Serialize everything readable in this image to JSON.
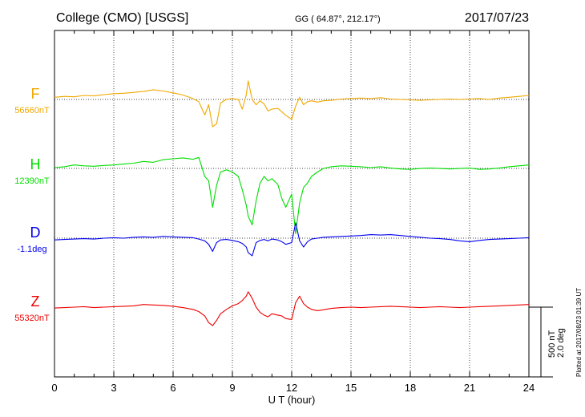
{
  "header": {
    "station": "College (CMO)  [USGS]",
    "coords": "GG ( 64.87°, 212.17°)",
    "date": "2017/07/23"
  },
  "plotted_note": "Plotted at 2017/08/23 01:39 UT",
  "scale_bar": {
    "label1": "500 nT",
    "label2": "2.0 deg"
  },
  "chart_data": {
    "type": "line",
    "title": "College (CMO)  [USGS]",
    "xlabel": "U T (hour)",
    "ylabel": "",
    "xlim": [
      0,
      24
    ],
    "x_ticks": [
      "0",
      "3",
      "6",
      "9",
      "12",
      "15",
      "18",
      "21",
      "24"
    ],
    "grid": true,
    "series": [
      {
        "name": "F",
        "baseline_label": "56660nT",
        "color": "#f0a800",
        "offset": 0,
        "points": [
          [
            0,
            5
          ],
          [
            0.5,
            7
          ],
          [
            1,
            6
          ],
          [
            1.5,
            9
          ],
          [
            2,
            8
          ],
          [
            2.5,
            11
          ],
          [
            3,
            13
          ],
          [
            3.5,
            14
          ],
          [
            4,
            16
          ],
          [
            4.5,
            18
          ],
          [
            5,
            22
          ],
          [
            5.5,
            19
          ],
          [
            6,
            15
          ],
          [
            6.5,
            10
          ],
          [
            7,
            2
          ],
          [
            7.3,
            -5
          ],
          [
            7.6,
            -35
          ],
          [
            7.8,
            -12
          ],
          [
            8,
            -62
          ],
          [
            8.2,
            -55
          ],
          [
            8.4,
            -8
          ],
          [
            8.7,
            0
          ],
          [
            9,
            2
          ],
          [
            9.3,
            0
          ],
          [
            9.5,
            -22
          ],
          [
            9.7,
            10
          ],
          [
            9.8,
            42
          ],
          [
            10,
            0
          ],
          [
            10.2,
            -12
          ],
          [
            10.4,
            -3
          ],
          [
            10.6,
            -10
          ],
          [
            10.8,
            -26
          ],
          [
            11,
            -22
          ],
          [
            11.3,
            -20
          ],
          [
            11.5,
            -28
          ],
          [
            11.7,
            -36
          ],
          [
            12,
            -45
          ],
          [
            12.2,
            -15
          ],
          [
            12.4,
            5
          ],
          [
            12.6,
            -12
          ],
          [
            12.8,
            -5
          ],
          [
            13,
            -3
          ],
          [
            13.3,
            -6
          ],
          [
            13.6,
            -3
          ],
          [
            14,
            -2
          ],
          [
            14.5,
            1
          ],
          [
            15,
            2
          ],
          [
            15.5,
            3
          ],
          [
            16,
            2
          ],
          [
            16.5,
            4
          ],
          [
            17,
            1
          ],
          [
            17.5,
            0
          ],
          [
            18,
            -1
          ],
          [
            18.5,
            -2
          ],
          [
            19,
            -1
          ],
          [
            19.5,
            0
          ],
          [
            20,
            1
          ],
          [
            20.5,
            0
          ],
          [
            21,
            1
          ],
          [
            21.5,
            2
          ],
          [
            22,
            0
          ],
          [
            22.5,
            3
          ],
          [
            23,
            5
          ],
          [
            23.5,
            7
          ],
          [
            24,
            9
          ]
        ]
      },
      {
        "name": "H",
        "baseline_label": "12390nT",
        "color": "#00dd00",
        "offset": 0,
        "points": [
          [
            0,
            0
          ],
          [
            0.5,
            2
          ],
          [
            1,
            6
          ],
          [
            1.5,
            4
          ],
          [
            2,
            3
          ],
          [
            2.5,
            5
          ],
          [
            3,
            6
          ],
          [
            3.5,
            8
          ],
          [
            4,
            10
          ],
          [
            4.5,
            14
          ],
          [
            5,
            12
          ],
          [
            5.5,
            18
          ],
          [
            6,
            20
          ],
          [
            6.5,
            22
          ],
          [
            7,
            19
          ],
          [
            7.3,
            23
          ],
          [
            7.6,
            -20
          ],
          [
            7.8,
            -30
          ],
          [
            8,
            -90
          ],
          [
            8.2,
            -40
          ],
          [
            8.4,
            -10
          ],
          [
            8.7,
            -5
          ],
          [
            9,
            -10
          ],
          [
            9.3,
            -20
          ],
          [
            9.5,
            -50
          ],
          [
            9.7,
            -85
          ],
          [
            9.8,
            -110
          ],
          [
            10,
            -130
          ],
          [
            10.2,
            -75
          ],
          [
            10.4,
            -35
          ],
          [
            10.6,
            -20
          ],
          [
            10.8,
            -30
          ],
          [
            11,
            -25
          ],
          [
            11.3,
            -38
          ],
          [
            11.5,
            -70
          ],
          [
            11.7,
            -90
          ],
          [
            12,
            -60
          ],
          [
            12.2,
            -150
          ],
          [
            12.4,
            -80
          ],
          [
            12.6,
            -45
          ],
          [
            12.8,
            -35
          ],
          [
            13,
            -20
          ],
          [
            13.3,
            -10
          ],
          [
            13.6,
            -2
          ],
          [
            14,
            2
          ],
          [
            14.5,
            4
          ],
          [
            15,
            3
          ],
          [
            15.5,
            2
          ],
          [
            16,
            0
          ],
          [
            16.5,
            2
          ],
          [
            17,
            -1
          ],
          [
            17.5,
            -3
          ],
          [
            18,
            -4
          ],
          [
            18.5,
            -2
          ],
          [
            19,
            -1
          ],
          [
            19.5,
            -2
          ],
          [
            20,
            -3
          ],
          [
            20.5,
            -2
          ],
          [
            21,
            -1
          ],
          [
            21.5,
            -4
          ],
          [
            22,
            -3
          ],
          [
            22.5,
            -1
          ],
          [
            23,
            2
          ],
          [
            23.5,
            4
          ],
          [
            24,
            6
          ]
        ]
      },
      {
        "name": "D",
        "baseline_label": "-1.1deg",
        "color": "#0000ee",
        "offset": 0,
        "points": [
          [
            0,
            -4
          ],
          [
            0.5,
            -3
          ],
          [
            1,
            -2
          ],
          [
            1.5,
            -1
          ],
          [
            2,
            -2
          ],
          [
            2.5,
            0
          ],
          [
            3,
            1
          ],
          [
            3.5,
            0
          ],
          [
            4,
            2
          ],
          [
            4.5,
            3
          ],
          [
            5,
            2
          ],
          [
            5.5,
            4
          ],
          [
            6,
            3
          ],
          [
            6.5,
            2
          ],
          [
            7,
            1
          ],
          [
            7.3,
            -2
          ],
          [
            7.6,
            -6
          ],
          [
            7.8,
            -14
          ],
          [
            8,
            -30
          ],
          [
            8.2,
            -10
          ],
          [
            8.4,
            -4
          ],
          [
            8.7,
            -3
          ],
          [
            9,
            -5
          ],
          [
            9.3,
            -8
          ],
          [
            9.5,
            -12
          ],
          [
            9.7,
            -20
          ],
          [
            9.8,
            -33
          ],
          [
            10,
            -40
          ],
          [
            10.2,
            -10
          ],
          [
            10.4,
            -5
          ],
          [
            10.6,
            -3
          ],
          [
            10.8,
            -6
          ],
          [
            11,
            -2
          ],
          [
            11.3,
            -4
          ],
          [
            11.5,
            -8
          ],
          [
            11.7,
            -14
          ],
          [
            12,
            -10
          ],
          [
            12.2,
            35
          ],
          [
            12.4,
            -6
          ],
          [
            12.6,
            -20
          ],
          [
            12.8,
            -8
          ],
          [
            13,
            -2
          ],
          [
            13.3,
            0
          ],
          [
            13.6,
            2
          ],
          [
            14,
            3
          ],
          [
            14.5,
            4
          ],
          [
            15,
            5
          ],
          [
            15.5,
            6
          ],
          [
            16,
            8
          ],
          [
            16.5,
            7
          ],
          [
            17,
            8
          ],
          [
            17.5,
            6
          ],
          [
            18,
            4
          ],
          [
            18.5,
            2
          ],
          [
            19,
            0
          ],
          [
            19.5,
            -1
          ],
          [
            20,
            -3
          ],
          [
            20.5,
            -6
          ],
          [
            21,
            -8
          ],
          [
            21.5,
            -5
          ],
          [
            22,
            -3
          ],
          [
            22.5,
            -2
          ],
          [
            23,
            -1
          ],
          [
            23.5,
            0
          ],
          [
            24,
            1
          ]
        ]
      },
      {
        "name": "Z",
        "baseline_label": "55320nT",
        "color": "#ee0000",
        "offset": 0,
        "points": [
          [
            0,
            -2
          ],
          [
            0.5,
            -1
          ],
          [
            1,
            0
          ],
          [
            1.5,
            1
          ],
          [
            2,
            -1
          ],
          [
            2.5,
            0
          ],
          [
            3,
            1
          ],
          [
            3.5,
            2
          ],
          [
            4,
            3
          ],
          [
            4.5,
            6
          ],
          [
            5,
            5
          ],
          [
            5.5,
            4
          ],
          [
            6,
            2
          ],
          [
            6.5,
            -1
          ],
          [
            7,
            -5
          ],
          [
            7.3,
            -10
          ],
          [
            7.6,
            -20
          ],
          [
            7.8,
            -35
          ],
          [
            8,
            -42
          ],
          [
            8.2,
            -30
          ],
          [
            8.4,
            -15
          ],
          [
            8.7,
            -5
          ],
          [
            9,
            3
          ],
          [
            9.3,
            8
          ],
          [
            9.5,
            15
          ],
          [
            9.7,
            25
          ],
          [
            9.8,
            35
          ],
          [
            10,
            20
          ],
          [
            10.2,
            0
          ],
          [
            10.4,
            -12
          ],
          [
            10.6,
            -18
          ],
          [
            10.8,
            -22
          ],
          [
            11,
            -15
          ],
          [
            11.3,
            -18
          ],
          [
            11.5,
            -20
          ],
          [
            11.7,
            -26
          ],
          [
            12,
            -28
          ],
          [
            12.2,
            10
          ],
          [
            12.4,
            25
          ],
          [
            12.6,
            8
          ],
          [
            12.8,
            0
          ],
          [
            13,
            -5
          ],
          [
            13.3,
            -8
          ],
          [
            13.6,
            -6
          ],
          [
            14,
            -3
          ],
          [
            14.5,
            -1
          ],
          [
            15,
            0
          ],
          [
            15.5,
            -1
          ],
          [
            16,
            0
          ],
          [
            16.5,
            1
          ],
          [
            17,
            2
          ],
          [
            17.5,
            1
          ],
          [
            18,
            0
          ],
          [
            18.5,
            -1
          ],
          [
            19,
            0
          ],
          [
            19.5,
            1
          ],
          [
            20,
            0
          ],
          [
            20.5,
            -1
          ],
          [
            21,
            0
          ],
          [
            21.5,
            1
          ],
          [
            22,
            2
          ],
          [
            22.5,
            3
          ],
          [
            23,
            4
          ],
          [
            23.5,
            5
          ],
          [
            24,
            6
          ]
        ]
      }
    ]
  }
}
